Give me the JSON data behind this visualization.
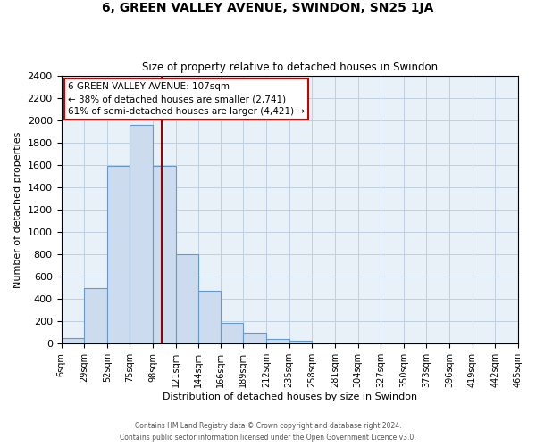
{
  "title": "6, GREEN VALLEY AVENUE, SWINDON, SN25 1JA",
  "subtitle": "Size of property relative to detached houses in Swindon",
  "xlabel": "Distribution of detached houses by size in Swindon",
  "ylabel": "Number of detached properties",
  "bin_labels": [
    "6sqm",
    "29sqm",
    "52sqm",
    "75sqm",
    "98sqm",
    "121sqm",
    "144sqm",
    "166sqm",
    "189sqm",
    "212sqm",
    "235sqm",
    "258sqm",
    "281sqm",
    "304sqm",
    "327sqm",
    "350sqm",
    "373sqm",
    "396sqm",
    "419sqm",
    "442sqm",
    "465sqm"
  ],
  "bar_values": [
    50,
    500,
    1590,
    1960,
    1590,
    800,
    470,
    190,
    95,
    40,
    25,
    5,
    0,
    0,
    0,
    0,
    0,
    0,
    0,
    0
  ],
  "bar_color": "#ccdcee",
  "bar_edge_color": "#6699cc",
  "vline_x": 107,
  "vline_color": "#990000",
  "ylim": [
    0,
    2400
  ],
  "yticks": [
    0,
    200,
    400,
    600,
    800,
    1000,
    1200,
    1400,
    1600,
    1800,
    2000,
    2200,
    2400
  ],
  "annotation_title": "6 GREEN VALLEY AVENUE: 107sqm",
  "annotation_line1": "← 38% of detached houses are smaller (2,741)",
  "annotation_line2": "61% of semi-detached houses are larger (4,421) →",
  "annotation_box_color": "#ffffff",
  "annotation_box_edge": "#cc0000",
  "footer1": "Contains HM Land Registry data © Crown copyright and database right 2024.",
  "footer2": "Contains public sector information licensed under the Open Government Licence v3.0.",
  "bin_edges": [
    6,
    29,
    52,
    75,
    98,
    121,
    144,
    166,
    189,
    212,
    235,
    258,
    281,
    304,
    327,
    350,
    373,
    396,
    419,
    442,
    465
  ],
  "bg_color": "#e8f0f8",
  "grid_color": "#c0cfe0"
}
